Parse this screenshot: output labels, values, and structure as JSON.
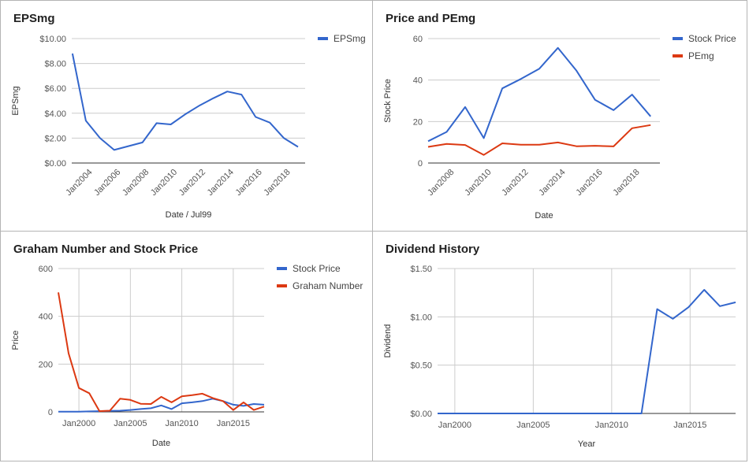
{
  "colors": {
    "blue": "#3366cc",
    "red": "#dc3912",
    "grid": "#cccccc",
    "axis": "#333333"
  },
  "chart_data": [
    {
      "id": "eps",
      "type": "line",
      "title": "EPSmg",
      "xlabel": "Date / Jul99",
      "ylabel": "EPSmg",
      "ylim": [
        0,
        10
      ],
      "xlim": [
        2002.75,
        2019.25
      ],
      "yticks": [
        0,
        2,
        4,
        6,
        8,
        10
      ],
      "ytick_labels": [
        "$0.00",
        "$2.00",
        "$4.00",
        "$6.00",
        "$8.00",
        "$10.00"
      ],
      "xticks": [
        2004,
        2006,
        2008,
        2010,
        2012,
        2014,
        2016,
        2018
      ],
      "xtick_labels": [
        "Jan2004",
        "Jan2006",
        "Jan2008",
        "Jan2010",
        "Jan2012",
        "Jan2014",
        "Jan2016",
        "Jan2018"
      ],
      "xtick_rotate": true,
      "vgrid": false,
      "legend": "right",
      "series": [
        {
          "name": "EPSmg",
          "color": "#3366cc",
          "x": [
            2002.8,
            2003.75,
            2004.75,
            2005.75,
            2007.75,
            2008.75,
            2009.75,
            2010.75,
            2011.75,
            2012.75,
            2013.75,
            2014.75,
            2015.75,
            2016.75,
            2017.75,
            2018.75
          ],
          "y": [
            8.8,
            3.4,
            2.0,
            1.05,
            1.65,
            3.2,
            3.1,
            3.9,
            4.6,
            5.2,
            5.75,
            5.5,
            3.7,
            3.25,
            2.0,
            1.3
          ]
        }
      ]
    },
    {
      "id": "pe",
      "type": "line",
      "title": "Price and PEmg",
      "xlabel": "Date",
      "ylabel": "Stock Price",
      "ylim": [
        0,
        60
      ],
      "xlim": [
        2006.75,
        2019.25
      ],
      "yticks": [
        0,
        20,
        40,
        60
      ],
      "ytick_labels": [
        "0",
        "20",
        "40",
        "60"
      ],
      "xticks": [
        2008,
        2010,
        2012,
        2014,
        2016,
        2018
      ],
      "xtick_labels": [
        "Jan2008",
        "Jan2010",
        "Jan2012",
        "Jan2014",
        "Jan2016",
        "Jan2018"
      ],
      "xtick_rotate": true,
      "vgrid": false,
      "legend": "right",
      "series": [
        {
          "name": "Stock Price",
          "color": "#3366cc",
          "x": [
            2006.75,
            2007.75,
            2008.75,
            2009.75,
            2010.75,
            2011.75,
            2012.75,
            2013.75,
            2014.75,
            2015.75,
            2016.75,
            2017.75,
            2018.75
          ],
          "y": [
            10.5,
            15,
            27,
            12,
            36,
            40.5,
            45.5,
            55.5,
            44.5,
            30.5,
            25.5,
            33,
            22.5
          ]
        },
        {
          "name": "PEmg",
          "color": "#dc3912",
          "x": [
            2006.75,
            2007.75,
            2008.75,
            2009.75,
            2010.75,
            2011.75,
            2012.75,
            2013.75,
            2014.75,
            2015.75,
            2016.75,
            2017.75,
            2018.75
          ],
          "y": [
            7.8,
            9.2,
            8.7,
            3.9,
            9.5,
            8.8,
            8.8,
            9.9,
            8.1,
            8.3,
            8.0,
            16.8,
            18.3
          ]
        }
      ]
    },
    {
      "id": "graham",
      "type": "line",
      "title": "Graham Number and Stock Price",
      "xlabel": "Date",
      "ylabel": "Price",
      "ylim": [
        0,
        600
      ],
      "xlim": [
        1998,
        2018
      ],
      "yticks": [
        0,
        200,
        400,
        600
      ],
      "ytick_labels": [
        "0",
        "200",
        "400",
        "600"
      ],
      "xticks": [
        2000,
        2005,
        2010,
        2015
      ],
      "xtick_labels": [
        "Jan2000",
        "Jan2005",
        "Jan2010",
        "Jan2015"
      ],
      "xtick_rotate": false,
      "vgrid": true,
      "legend": "right",
      "series": [
        {
          "name": "Stock Price",
          "color": "#3366cc",
          "x": [
            1998,
            2000,
            2001,
            2002,
            2003,
            2004,
            2005,
            2006,
            2007,
            2008,
            2009,
            2010,
            2011,
            2012,
            2013,
            2014,
            2015,
            2016,
            2017,
            2018
          ],
          "y": [
            1,
            1,
            2,
            3,
            4,
            5,
            8,
            12,
            15,
            27,
            12,
            36,
            40,
            45,
            55,
            45,
            30,
            25,
            33,
            30
          ]
        },
        {
          "name": "Graham Number",
          "color": "#dc3912",
          "x": [
            1998,
            1999,
            2000,
            2001,
            2002,
            2003,
            2004,
            2005,
            2006,
            2007,
            2008,
            2009,
            2010,
            2011,
            2012,
            2013,
            2014,
            2015,
            2016,
            2017,
            2018
          ],
          "y": [
            500,
            245,
            100,
            78,
            3,
            5,
            55,
            50,
            34,
            33,
            63,
            40,
            65,
            70,
            76,
            58,
            45,
            8,
            40,
            8,
            22
          ]
        }
      ]
    },
    {
      "id": "div",
      "type": "line",
      "title": "Dividend History",
      "xlabel": "Year",
      "ylabel": "Dividend",
      "ylim": [
        0,
        1.5
      ],
      "xlim": [
        1998.9,
        2017.9
      ],
      "yticks": [
        0,
        0.5,
        1.0,
        1.5
      ],
      "ytick_labels": [
        "$0.00",
        "$0.50",
        "$1.00",
        "$1.50"
      ],
      "xticks": [
        2000,
        2005,
        2010,
        2015
      ],
      "xtick_labels": [
        "Jan2000",
        "Jan2005",
        "Jan2010",
        "Jan2015"
      ],
      "xtick_rotate": false,
      "vgrid": true,
      "legend": "none",
      "series": [
        {
          "name": "",
          "color": "#3366cc",
          "x": [
            1998.9,
            2011.9,
            2012.9,
            2013.9,
            2014.9,
            2015.9,
            2016.9,
            2017.9
          ],
          "y": [
            0,
            0,
            1.08,
            0.98,
            1.1,
            1.28,
            1.11,
            1.15
          ]
        }
      ]
    }
  ]
}
